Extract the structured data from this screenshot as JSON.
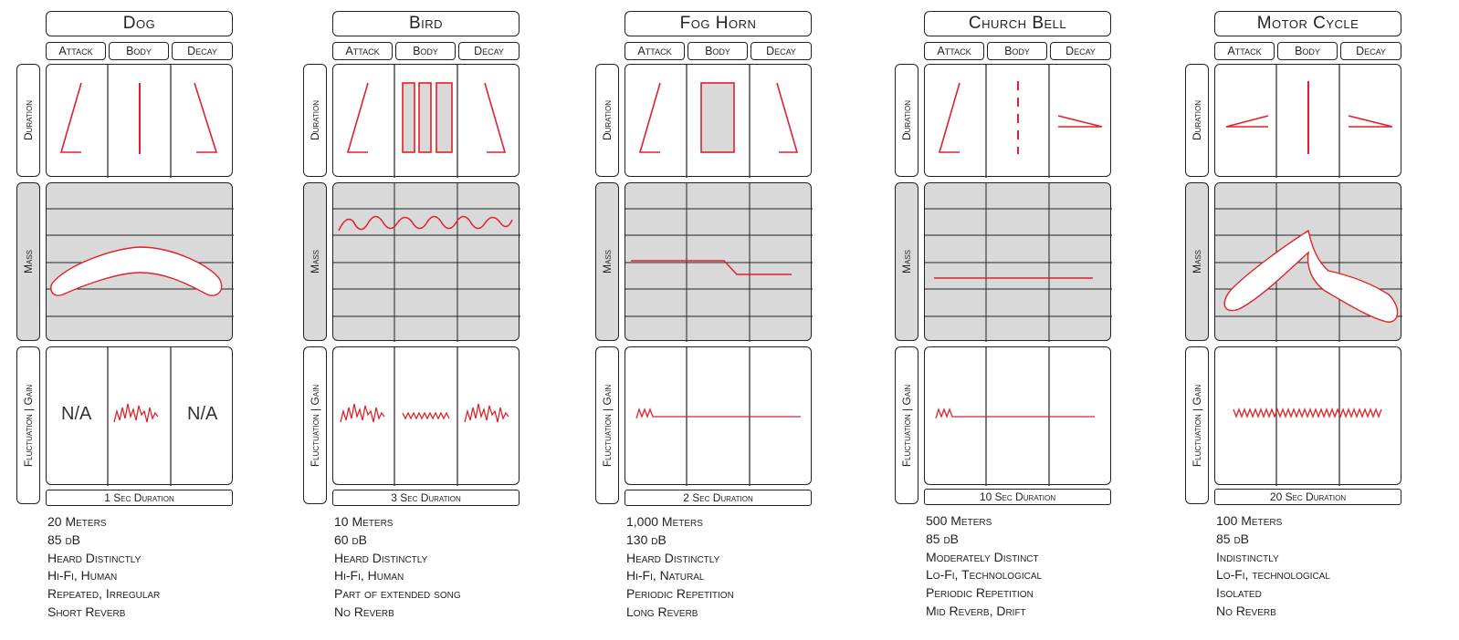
{
  "column_headers": [
    "Attack",
    "Body",
    "Decay"
  ],
  "row_labels": {
    "duration": "Duration",
    "mass": "Mass",
    "fluctuation": "Fluctuation | Gain"
  },
  "panels": [
    {
      "title": "Dog",
      "footer": "1 Sec Duration",
      "fluct_attack": "N/A",
      "fluct_decay": "N/A",
      "notes": [
        "20 Meters",
        "85 dB",
        "Heard Distinctly",
        "Hi-Fi, Human",
        "Repeated, Irregular",
        "Short Reverb"
      ]
    },
    {
      "title": "Bird",
      "footer": "3 Sec Duration",
      "notes": [
        "10 Meters",
        "60 dB",
        "Heard Distinctly",
        "Hi-Fi, Human",
        "Part of extended song",
        "No Reverb"
      ]
    },
    {
      "title": "Fog Horn",
      "footer": "2 Sec Duration",
      "notes": [
        "1,000 Meters",
        "130 dB",
        "Heard Distinctly",
        "Hi-Fi, Natural",
        "Periodic Repetition",
        "Long Reverb"
      ]
    },
    {
      "title": "Church Bell",
      "footer": "10 Sec Duration",
      "notes": [
        "500 Meters",
        "85 dB",
        "Moderately Distinct",
        "Lo-Fi, Technological",
        "Periodic Repetition",
        "Mid Reverb, Drift"
      ]
    },
    {
      "title": "Motor Cycle",
      "footer": "20 Sec Duration",
      "notes": [
        "100 Meters",
        "85 dB",
        "Indistinctly",
        "Lo-Fi, technological",
        "Isolated",
        "No Reverb"
      ]
    }
  ],
  "colors": {
    "sound_line": "#e0202a",
    "mass_fill": "#d9d9d9",
    "border": "#222222"
  }
}
